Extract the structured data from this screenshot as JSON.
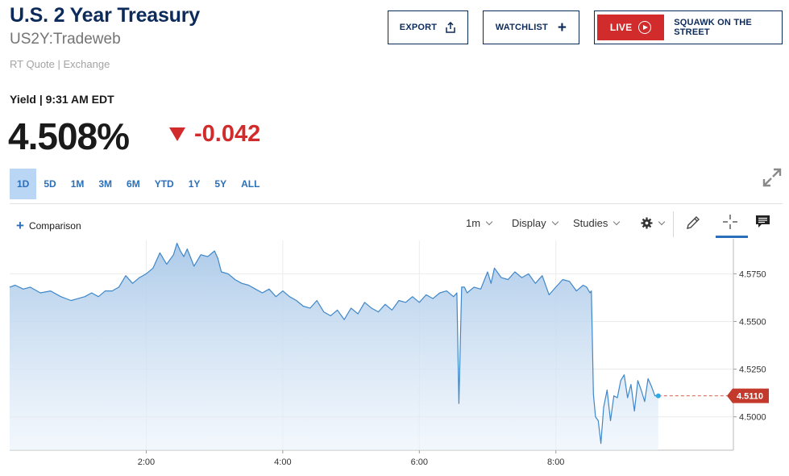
{
  "header": {
    "title": "U.S. 2 Year Treasury",
    "symbol": "US2Y:Tradeweb",
    "quote_source": "RT Quote | Exchange"
  },
  "actions": {
    "export_label": "EXPORT",
    "watchlist_label": "WATCHLIST",
    "live_label": "LIVE",
    "squawk_label": "SQUAWK ON THE STREET"
  },
  "quote": {
    "yield_time": "Yield | 9:31 AM EDT",
    "price": "4.508%",
    "change": "-0.042",
    "change_color": "#d12b2b"
  },
  "ranges": [
    "1D",
    "5D",
    "1M",
    "3M",
    "6M",
    "YTD",
    "1Y",
    "5Y",
    "ALL"
  ],
  "active_range": "1D",
  "toolbar": {
    "comparison_label": "Comparison",
    "interval_label": "1m",
    "display_label": "Display",
    "studies_label": "Studies"
  },
  "chart_data": {
    "type": "area",
    "x_ticks": [
      "2:00",
      "4:00",
      "6:00",
      "8:00"
    ],
    "y_ticks": [
      "4.5750",
      "4.5500",
      "4.5250",
      "4.5000"
    ],
    "ylim": [
      4.4825,
      4.5925
    ],
    "xlim_hours": [
      0.0,
      10.6
    ],
    "last_price_label": "4.5110",
    "last_price": 4.511,
    "series_color": "#3f87c8",
    "last_line_color": "#d6604d",
    "x": [
      0.0,
      0.08,
      0.2,
      0.3,
      0.45,
      0.6,
      0.75,
      0.9,
      1.0,
      1.1,
      1.2,
      1.3,
      1.4,
      1.5,
      1.6,
      1.7,
      1.8,
      1.9,
      2.0,
      2.1,
      2.2,
      2.3,
      2.4,
      2.45,
      2.5,
      2.55,
      2.6,
      2.7,
      2.8,
      2.9,
      3.0,
      3.05,
      3.1,
      3.2,
      3.3,
      3.4,
      3.5,
      3.6,
      3.7,
      3.8,
      3.9,
      4.0,
      4.1,
      4.2,
      4.3,
      4.4,
      4.5,
      4.6,
      4.7,
      4.8,
      4.9,
      5.0,
      5.1,
      5.2,
      5.3,
      5.4,
      5.5,
      5.6,
      5.7,
      5.8,
      5.9,
      6.0,
      6.1,
      6.2,
      6.3,
      6.4,
      6.5,
      6.55,
      6.58,
      6.62,
      6.66,
      6.7,
      6.8,
      6.9,
      7.0,
      7.05,
      7.1,
      7.2,
      7.3,
      7.4,
      7.5,
      7.6,
      7.7,
      7.8,
      7.9,
      8.0,
      8.1,
      8.2,
      8.3,
      8.4,
      8.45,
      8.5,
      8.52,
      8.55,
      8.58,
      8.62,
      8.66,
      8.7,
      8.75,
      8.8,
      8.85,
      8.9,
      8.95,
      9.0,
      9.05,
      9.1,
      9.15,
      9.2,
      9.25,
      9.3,
      9.35,
      9.4,
      9.45,
      9.5
    ],
    "y": [
      4.568,
      4.569,
      4.567,
      4.568,
      4.565,
      4.566,
      4.563,
      4.561,
      4.562,
      4.563,
      4.565,
      4.563,
      4.566,
      4.566,
      4.568,
      4.574,
      4.57,
      4.573,
      4.575,
      4.578,
      4.586,
      4.58,
      4.585,
      4.591,
      4.587,
      4.584,
      4.588,
      4.579,
      4.585,
      4.584,
      4.587,
      4.583,
      4.576,
      4.575,
      4.572,
      4.57,
      4.569,
      4.567,
      4.565,
      4.567,
      4.563,
      4.566,
      4.563,
      4.561,
      4.558,
      4.557,
      4.561,
      4.555,
      4.553,
      4.556,
      4.551,
      4.557,
      4.554,
      4.56,
      4.557,
      4.555,
      4.559,
      4.556,
      4.561,
      4.56,
      4.563,
      4.56,
      4.564,
      4.562,
      4.565,
      4.566,
      4.563,
      4.565,
      4.507,
      4.568,
      4.568,
      4.565,
      4.568,
      4.567,
      4.576,
      4.57,
      4.578,
      4.573,
      4.572,
      4.576,
      4.573,
      4.575,
      4.57,
      4.574,
      4.564,
      4.568,
      4.572,
      4.571,
      4.566,
      4.569,
      4.568,
      4.565,
      4.566,
      4.512,
      4.5,
      4.498,
      4.486,
      4.505,
      4.514,
      4.498,
      4.511,
      4.51,
      4.519,
      4.522,
      4.51,
      4.517,
      4.503,
      4.519,
      4.514,
      4.508,
      4.52,
      4.516,
      4.511,
      4.511
    ]
  }
}
